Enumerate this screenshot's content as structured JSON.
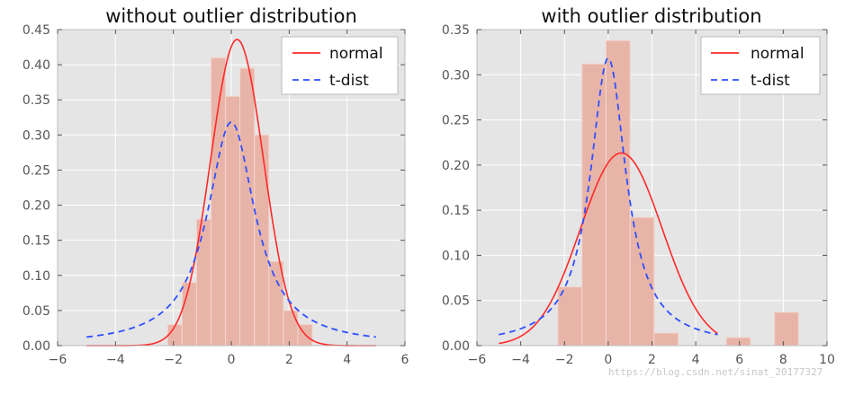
{
  "colors": {
    "panel_bg": "#e5e5e5",
    "grid": "#ffffff",
    "hist_fill": "#e8b4a8",
    "hist_edge": "#f3d6ce",
    "normal_line": "#ff2a2a",
    "t_line": "#2f4fff"
  },
  "watermark": "https://blog.csdn.net/sinat_20177327",
  "chart_data": [
    {
      "type": "histogram+line",
      "title": "without outlier distribution",
      "xlim": [
        -6,
        6
      ],
      "ylim": [
        0,
        0.45
      ],
      "xticks": [
        -6,
        -4,
        -2,
        0,
        2,
        4,
        6
      ],
      "xtick_labels": [
        "−6",
        "−4",
        "−2",
        "0",
        "2",
        "4",
        "6"
      ],
      "yticks": [
        0,
        0.05,
        0.1,
        0.15,
        0.2,
        0.25,
        0.3,
        0.35,
        0.4,
        0.45
      ],
      "ytick_labels": [
        "0.00",
        "0.05",
        "0.10",
        "0.15",
        "0.20",
        "0.25",
        "0.30",
        "0.35",
        "0.40",
        "0.45"
      ],
      "grid": true,
      "legend_placement": "top-right",
      "legend": [
        "normal",
        "t-dist"
      ],
      "histogram": {
        "bin_edges": [
          -2.2,
          -1.7,
          -1.2,
          -0.7,
          -0.2,
          0.3,
          0.8,
          1.3,
          1.8,
          2.3,
          2.8
        ],
        "heights": [
          0.03,
          0.09,
          0.18,
          0.41,
          0.355,
          0.395,
          0.3,
          0.12,
          0.05,
          0.03
        ]
      },
      "series": [
        {
          "name": "normal",
          "style": "solid",
          "dist": "normal",
          "mu": 0.2,
          "sigma": 0.915,
          "x_range": [
            -5,
            5
          ]
        },
        {
          "name": "t-dist",
          "style": "dashed",
          "dist": "t",
          "df": 1.0,
          "loc": 0.0,
          "scale": 1.0,
          "x_range": [
            -5,
            5
          ]
        }
      ]
    },
    {
      "type": "histogram+line",
      "title": "with outlier distribution",
      "xlim": [
        -6,
        10
      ],
      "ylim": [
        0,
        0.35
      ],
      "xticks": [
        -6,
        -4,
        -2,
        0,
        2,
        4,
        6,
        8,
        10
      ],
      "xtick_labels": [
        "−6",
        "−4",
        "−2",
        "0",
        "2",
        "4",
        "6",
        "8",
        "10"
      ],
      "yticks": [
        0,
        0.05,
        0.1,
        0.15,
        0.2,
        0.25,
        0.3,
        0.35
      ],
      "ytick_labels": [
        "0.00",
        "0.05",
        "0.10",
        "0.15",
        "0.20",
        "0.25",
        "0.30",
        "0.35"
      ],
      "grid": true,
      "legend_placement": "top-right",
      "legend": [
        "normal",
        "t-dist"
      ],
      "histogram": {
        "bin_edges": [
          -2.3,
          -1.2,
          -0.1,
          1.0,
          2.1,
          3.2,
          4.3,
          5.4,
          6.5,
          7.6,
          8.7
        ],
        "heights": [
          0.065,
          0.312,
          0.338,
          0.142,
          0.014,
          0.0,
          0.0,
          0.009,
          0.0,
          0.037
        ]
      },
      "series": [
        {
          "name": "normal",
          "style": "solid",
          "dist": "normal",
          "mu": 0.6,
          "sigma": 1.87,
          "x_range": [
            -5,
            5
          ]
        },
        {
          "name": "t-dist",
          "style": "dashed",
          "dist": "t",
          "df": 1.0,
          "loc": 0.0,
          "scale": 1.0,
          "x_range": [
            -5,
            5
          ]
        }
      ]
    }
  ]
}
